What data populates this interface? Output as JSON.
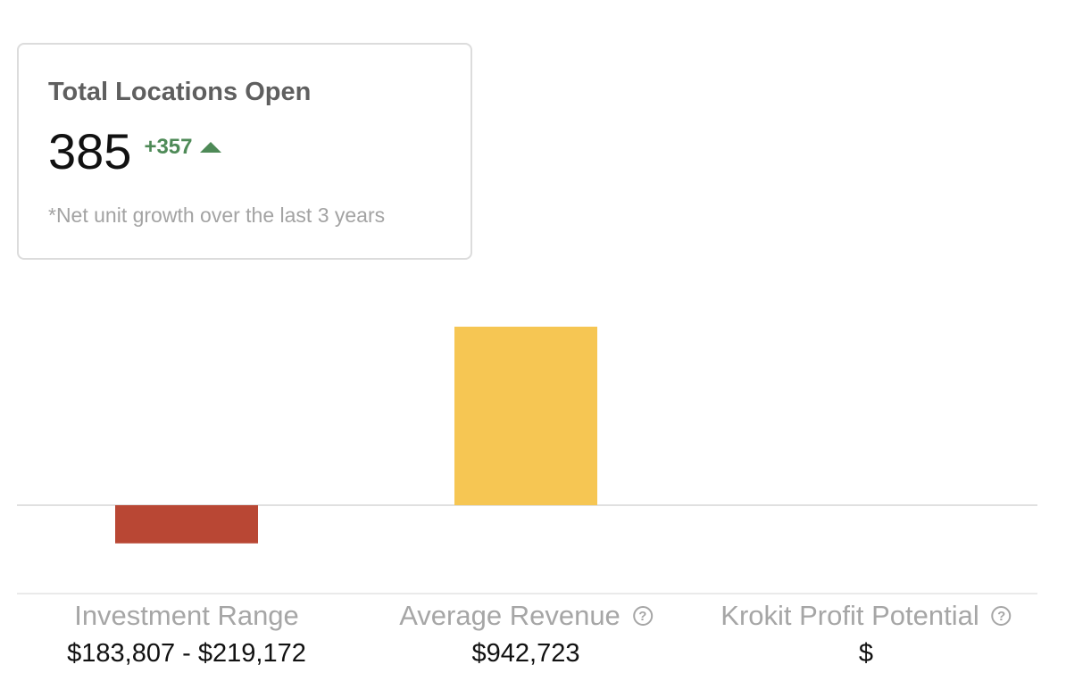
{
  "card": {
    "title": "Total Locations Open",
    "value": "385",
    "delta": "+357",
    "delta_icon": "triangle-up-icon",
    "note": "*Net unit growth over the last 3 years",
    "delta_color": "#4e8a57"
  },
  "chart_data": {
    "type": "bar",
    "categories": [
      "Investment Range",
      "Average Revenue",
      "Krokit Profit Potential"
    ],
    "values": [
      -201490,
      942723,
      0
    ],
    "colors": [
      "#b94734",
      "#f6c653",
      "#f6c653"
    ],
    "title": "",
    "xlabel": "",
    "ylabel": "",
    "ylim": [
      -500000,
      1000000
    ],
    "grid": false,
    "legend": "none",
    "value_labels": [
      "$183,807 - $219,172",
      "$942,723",
      "$"
    ],
    "help_icons": [
      false,
      true,
      true
    ]
  }
}
